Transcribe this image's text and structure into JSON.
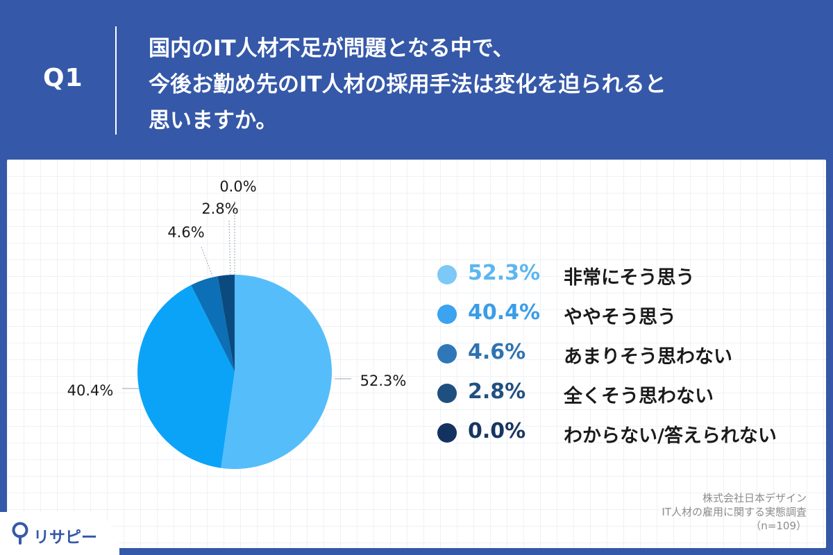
{
  "header": {
    "q_label": "Q1",
    "question_lines": [
      "国内のIT人材不足が問題となる中で、",
      "今後お勤め先のIT人材の採用手法は変化を迫られると",
      "思いますか。"
    ]
  },
  "chart_data": {
    "type": "pie",
    "unit": "%",
    "slices": [
      {
        "label": "非常にそう思う",
        "value": 52.3,
        "display": "52.3%",
        "color": "#56bdfb"
      },
      {
        "label": "ややそう思う",
        "value": 40.4,
        "display": "40.4%",
        "color": "#0ba3f7"
      },
      {
        "label": "あまりそう思わない",
        "value": 4.6,
        "display": "4.6%",
        "color": "#0d6fb5"
      },
      {
        "label": "全くそう思わない",
        "value": 2.8,
        "display": "2.8%",
        "color": "#0b4a7f"
      },
      {
        "label": "わからない/答えられない",
        "value": 0.0,
        "display": "0.0%",
        "color": "#0b2d59"
      }
    ],
    "legend": [
      {
        "pct": "52.3%",
        "label": "非常にそう思う",
        "dot_color": "#7cc8f6",
        "text_color": "#5cb6f0"
      },
      {
        "pct": "40.4%",
        "label": "ややそう思う",
        "dot_color": "#3ba3f0",
        "text_color": "#3a9de8"
      },
      {
        "pct": "4.6%",
        "label": "あまりそう思わない",
        "dot_color": "#2f77b8",
        "text_color": "#2f72b0"
      },
      {
        "pct": "2.8%",
        "label": "全くそう思わない",
        "dot_color": "#1f4e80",
        "text_color": "#214f80"
      },
      {
        "pct": "0.0%",
        "label": "わからない/答えられない",
        "dot_color": "#14325f",
        "text_color": "#173561"
      }
    ],
    "legend_placement": "right"
  },
  "source": {
    "company": "株式会社日本デザイン",
    "survey": "IT人材の雇用に関する実態調査",
    "sample": "（n=109）"
  },
  "branding": {
    "logo_text": "リサピー",
    "logo_icon": "pin-icon",
    "accent": "#3558a8"
  }
}
